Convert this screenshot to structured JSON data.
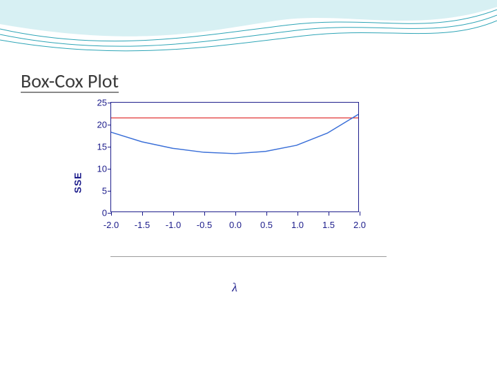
{
  "slide": {
    "title": "Box-Cox Plot",
    "title_fontsize": 28,
    "title_color": "#3a3a3a",
    "background_color": "#ffffff"
  },
  "wave": {
    "fill_color": "#b7e4ea",
    "line_color": "#2aa3b5",
    "line_width": 1
  },
  "chart": {
    "type": "line",
    "ylabel": "SSE",
    "xlabel": "λ",
    "label_color": "#1a1a8a",
    "ylabel_fontsize": 14,
    "xlabel_fontsize": 18,
    "axis_color": "#1a1a8a",
    "tick_fontsize": 13,
    "xlim": [
      -2.0,
      2.0
    ],
    "ylim": [
      0,
      25
    ],
    "xticks": [
      "-2.0",
      "-1.5",
      "-1.0",
      "-0.5",
      "0.0",
      "0.5",
      "1.0",
      "1.5",
      "2.0"
    ],
    "xtick_values": [
      -2.0,
      -1.5,
      -1.0,
      -0.5,
      0.0,
      0.5,
      1.0,
      1.5,
      2.0
    ],
    "yticks": [
      "0",
      "5",
      "10",
      "15",
      "20",
      "25"
    ],
    "ytick_values": [
      0,
      5,
      10,
      15,
      20,
      25
    ],
    "curve": {
      "x": [
        -2.0,
        -1.5,
        -1.0,
        -0.5,
        0.0,
        0.5,
        1.0,
        1.5,
        2.0
      ],
      "y": [
        18.2,
        16.0,
        14.5,
        13.6,
        13.3,
        13.8,
        15.2,
        18.0,
        22.3
      ],
      "color": "#3a6fd8",
      "width": 1.5
    },
    "threshold_line": {
      "y": 21.5,
      "color": "#e03030",
      "width": 1.2
    },
    "plot_background": "#ffffff",
    "border_color": "#1a1a8a"
  }
}
